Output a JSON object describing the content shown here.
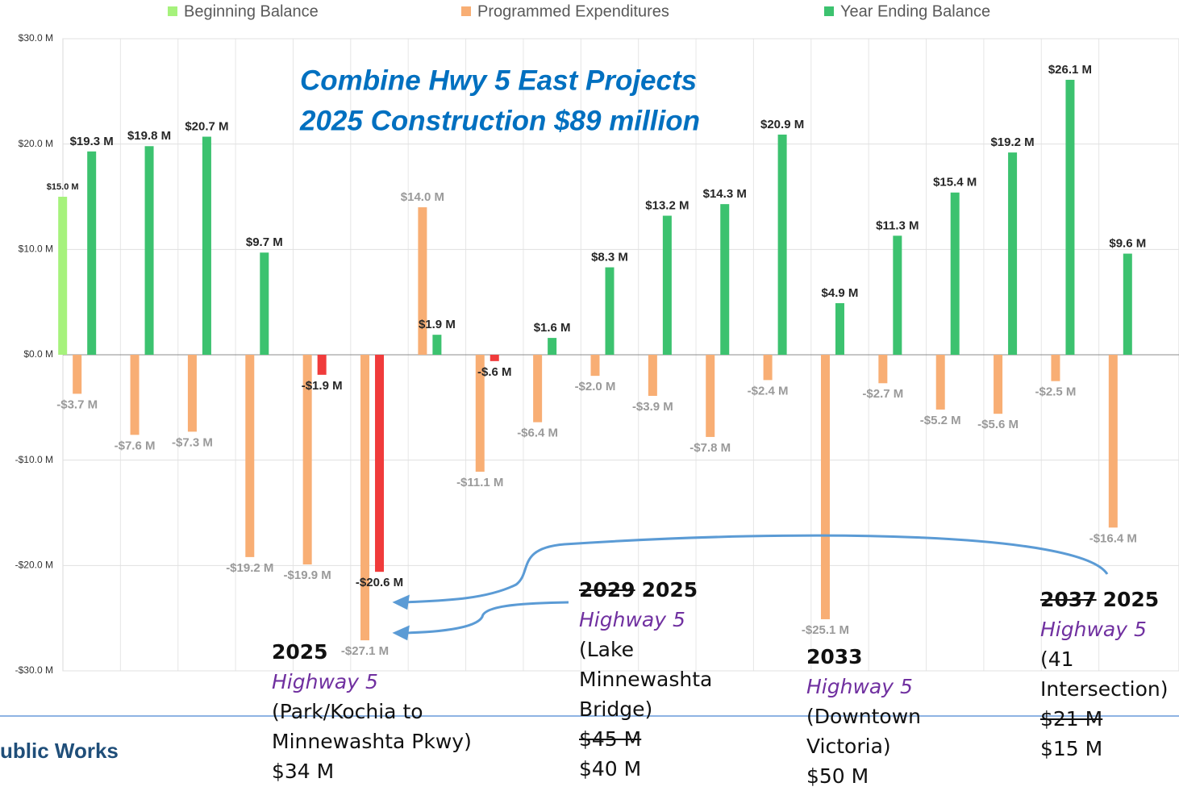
{
  "chart_data": {
    "type": "bar",
    "title": "Combine Hwy 5 East Projects",
    "subtitle": "2025 Construction $89 million",
    "categories": [
      null,
      null,
      null,
      null,
      null,
      null,
      null,
      null,
      null,
      null,
      null,
      null,
      null,
      null,
      null,
      null,
      null,
      null,
      null
    ],
    "series": [
      {
        "name": "Beginning Balance",
        "color": "#a6f27c",
        "values": [
          15.0,
          null,
          null,
          null,
          null,
          null,
          null,
          null,
          null,
          null,
          null,
          null,
          null,
          null,
          null,
          null,
          null,
          null,
          null
        ],
        "value_labels": [
          "$15.0 M",
          null,
          null,
          null,
          null,
          null,
          null,
          null,
          null,
          null,
          null,
          null,
          null,
          null,
          null,
          null,
          null,
          null,
          null
        ]
      },
      {
        "name": "Programmed Expenditures",
        "color": "#f8ae74",
        "values": [
          -3.7,
          -7.6,
          -7.3,
          -19.2,
          -19.9,
          -27.1,
          14.0,
          -11.1,
          -6.4,
          -2.0,
          -3.9,
          -7.8,
          -2.4,
          -25.1,
          -2.7,
          -5.2,
          -5.6,
          -2.5,
          -16.4
        ],
        "value_labels": [
          "-$3.7 M",
          "-$7.6 M",
          "-$7.3 M",
          "-$19.2 M",
          "-$19.9 M",
          "-$27.1 M",
          "$14.0 M",
          "-$11.1 M",
          "-$6.4 M",
          "-$2.0 M",
          "-$3.9 M",
          "-$7.8 M",
          "-$2.4 M",
          "-$25.1 M",
          "-$2.7 M",
          "-$5.2 M",
          "-$5.6 M",
          "-$2.5 M",
          "-$16.4 M"
        ]
      },
      {
        "name": "Year Ending Balance",
        "color": "#3cc26f",
        "negative_color": "#f03b3b",
        "values": [
          19.3,
          19.8,
          20.7,
          9.7,
          -1.9,
          -20.6,
          1.9,
          -0.6,
          1.6,
          8.3,
          13.2,
          14.3,
          20.9,
          4.9,
          11.3,
          15.4,
          19.2,
          26.1,
          9.6
        ],
        "value_labels": [
          "$19.3 M",
          "$19.8 M",
          "$20.7 M",
          "$9.7 M",
          "-$1.9 M",
          "-$20.6 M",
          "$1.9 M",
          "-$.6 M",
          "$1.6 M",
          "$8.3 M",
          "$13.2 M",
          "$14.3 M",
          "$20.9 M",
          "$4.9 M",
          "$11.3 M",
          "$15.4 M",
          "$19.2 M",
          "$26.1 M",
          "$9.6 M"
        ]
      }
    ],
    "ylim": [
      -30,
      30
    ],
    "yticks": [
      {
        "value": -30,
        "label": "-$30.0 M"
      },
      {
        "value": -20,
        "label": "-$20.0 M"
      },
      {
        "value": -10,
        "label": "-$10.0 M"
      },
      {
        "value": 0,
        "label": "$0.0 M"
      },
      {
        "value": 10,
        "label": "$10.0 M"
      },
      {
        "value": 20,
        "label": "$20.0 M"
      },
      {
        "value": 30,
        "label": "$30.0 M"
      }
    ],
    "grid": true,
    "legend": "top",
    "annotations": [
      {
        "year": "2025",
        "road": "Highway 5",
        "location": "(Park/Kochia to Minnewashta Pkwy)",
        "cost": "$34 M"
      },
      {
        "year_struck": "2029",
        "year": "2025",
        "road": "Highway 5",
        "location": "(Lake Minnewashta Bridge)",
        "cost_struck": "$45 M",
        "cost": "$40 M"
      },
      {
        "year": "2033",
        "road": "Highway 5",
        "location": "(Downtown Victoria)",
        "cost": "$50 M"
      },
      {
        "year_struck": "2037",
        "year": "2025",
        "road": "Highway 5",
        "location": "(41 Intersection)",
        "cost_struck": "$21 M",
        "cost": "$15 M"
      }
    ]
  },
  "footer": "ublic Works"
}
